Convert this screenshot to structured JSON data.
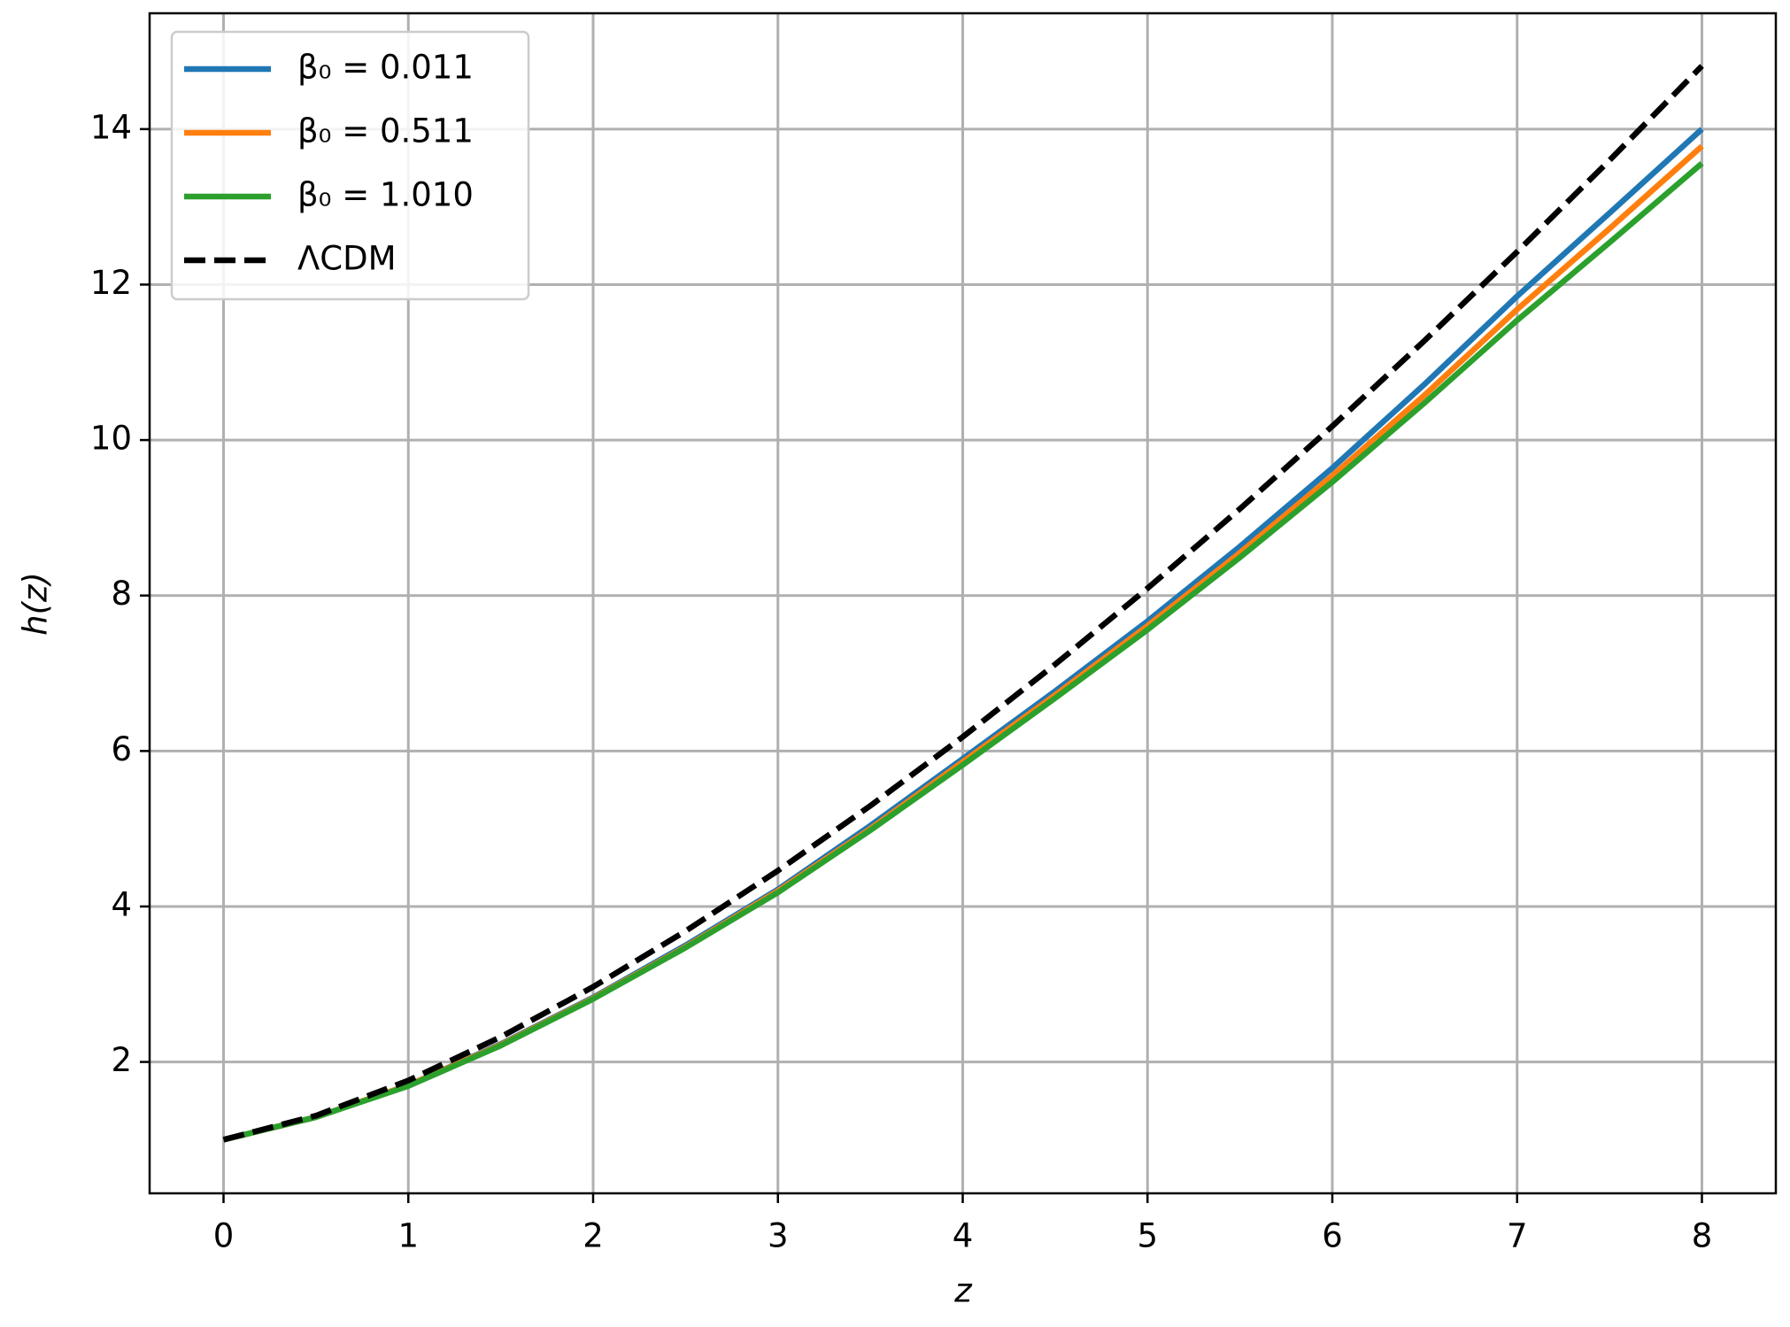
{
  "chart_data": {
    "type": "line",
    "x_label": "z",
    "y_label": "h(z)",
    "x": [
      0,
      0.5,
      1,
      1.5,
      2,
      2.5,
      3,
      3.5,
      4,
      4.5,
      5,
      5.5,
      6,
      6.5,
      7,
      7.5,
      8
    ],
    "series": [
      {
        "name": "β₀ = 0.011",
        "color": "#1f77b4",
        "values": [
          1,
          1.29,
          1.7,
          2.23,
          2.83,
          3.5,
          4.22,
          5.04,
          5.9,
          6.77,
          7.67,
          8.63,
          9.64,
          10.72,
          11.85,
          12.92,
          14.0
        ]
      },
      {
        "name": "β₀ = 0.511",
        "color": "#ff7f0e",
        "values": [
          1,
          1.29,
          1.7,
          2.22,
          2.82,
          3.48,
          4.2,
          5.0,
          5.86,
          6.72,
          7.61,
          8.55,
          9.54,
          10.58,
          11.68,
          12.72,
          13.78
        ]
      },
      {
        "name": "β₀ = 1.010",
        "color": "#2ca02c",
        "values": [
          1,
          1.29,
          1.69,
          2.21,
          2.81,
          3.47,
          4.18,
          4.98,
          5.82,
          6.68,
          7.56,
          8.49,
          9.46,
          10.48,
          11.54,
          12.54,
          13.56
        ]
      },
      {
        "name": "ΛCDM",
        "color": "#000000",
        "dashed": true,
        "values": [
          1,
          1.309,
          1.761,
          2.321,
          2.966,
          3.683,
          4.461,
          5.295,
          6.181,
          7.114,
          8.093,
          9.115,
          10.178,
          11.281,
          12.422,
          13.599,
          14.812
        ]
      }
    ],
    "xlim": [
      -0.4,
      8.4
    ],
    "ylim": [
      0.31,
      15.49
    ],
    "xticks": [
      0,
      1,
      2,
      3,
      4,
      5,
      6,
      7,
      8
    ],
    "yticks": [
      2,
      4,
      6,
      8,
      10,
      12,
      14
    ],
    "grid": true,
    "legend": "upper left"
  }
}
